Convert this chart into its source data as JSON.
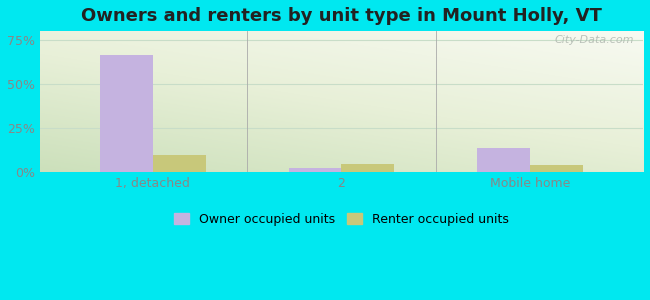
{
  "title": "Owners and renters by unit type in Mount Holly, VT",
  "categories": [
    "1, detached",
    "2",
    "Mobile home"
  ],
  "owner_values": [
    66.0,
    2.5,
    14.0
  ],
  "renter_values": [
    9.5,
    4.5,
    4.0
  ],
  "owner_color": "#c5b3e0",
  "renter_color": "#c8c87a",
  "background_color": "#00e8f0",
  "yticks": [
    0,
    25,
    50,
    75
  ],
  "ylim": [
    0,
    80
  ],
  "bar_width": 0.28,
  "legend_owner": "Owner occupied units",
  "legend_renter": "Renter occupied units",
  "title_fontsize": 13,
  "watermark": "City-Data.com",
  "grid_color": "#c8ddc8",
  "separator_color": "#aaaaaa",
  "tick_color": "#888888"
}
